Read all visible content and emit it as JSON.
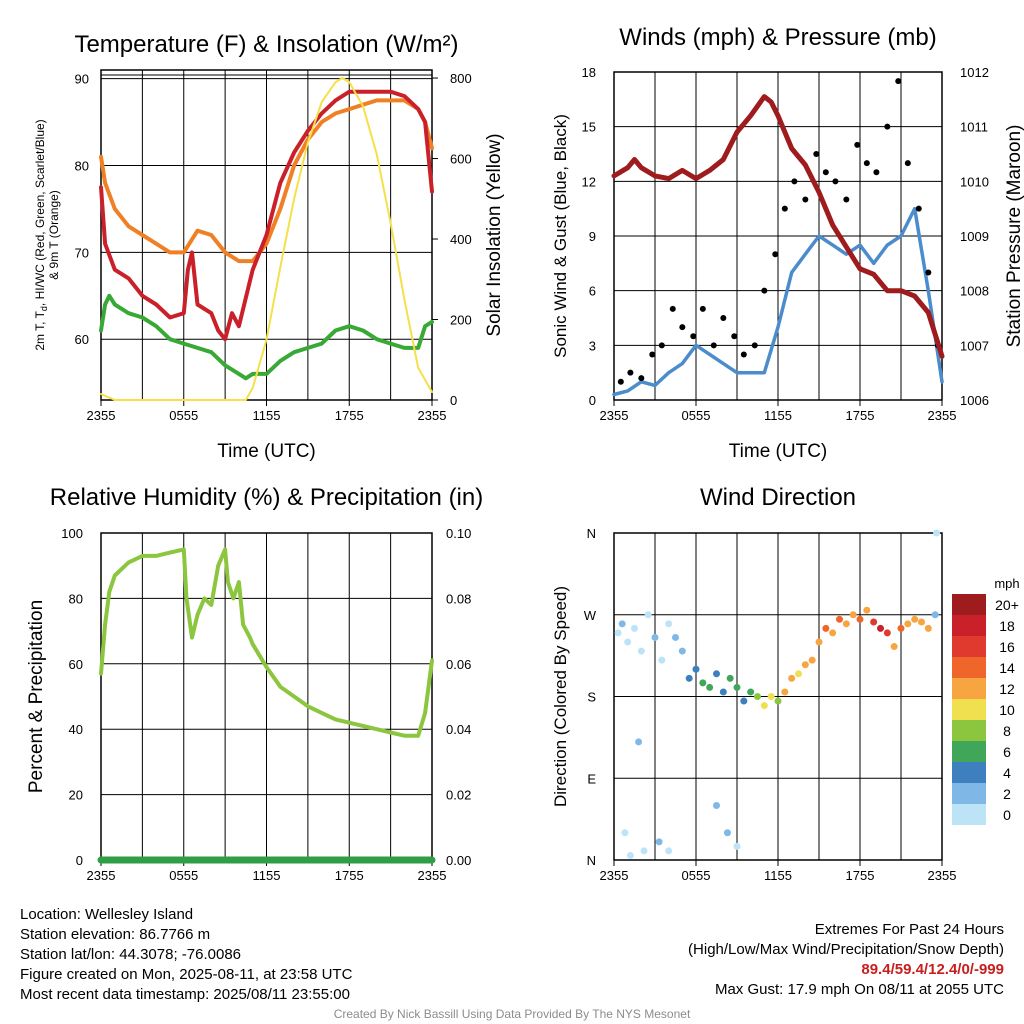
{
  "chart_data": [
    {
      "type": "line",
      "title": "Temperature (F) & Insolation (W/m²)",
      "xlabel": "Time (UTC)",
      "ylabel_left": [
        "2m T, T",
        "d",
        ", HI/WC (Red, Green, Scarlet/Blue)",
        "& 9m T (Orange)"
      ],
      "ylabel_right": "Solar Insolation (Yellow)",
      "x_ticks": [
        "2355",
        "0555",
        "1155",
        "1755",
        "2355"
      ],
      "y_ticks_left": [
        "60",
        "70",
        "80",
        "90"
      ],
      "y_ticks_right": [
        "0",
        "200",
        "400",
        "600",
        "800"
      ],
      "ylim_left": [
        53,
        91
      ],
      "ylim_right": [
        0,
        820
      ],
      "x_hours": [
        0,
        24
      ],
      "series": [
        {
          "color": "#39a935",
          "axis": "left",
          "x": [
            0,
            0.3,
            0.6,
            1,
            2,
            3,
            4,
            5,
            6,
            7,
            8,
            9,
            10,
            10.5,
            11,
            12,
            13,
            14,
            15,
            16,
            17,
            18,
            19,
            20,
            21,
            22,
            23,
            23.5,
            24
          ],
          "y": [
            61,
            64,
            65,
            64,
            63,
            62.5,
            61.5,
            60,
            59.5,
            59,
            58.5,
            57,
            56,
            55.5,
            56,
            56,
            57.5,
            58.5,
            59,
            59.5,
            61,
            61.5,
            61,
            60,
            59.5,
            59,
            59,
            61.5,
            62
          ]
        },
        {
          "color": "#f08025",
          "axis": "left",
          "x": [
            0,
            0.3,
            1,
            2,
            3,
            4,
            5,
            6,
            7,
            8,
            9,
            10,
            11,
            12,
            13,
            14,
            15,
            16,
            17,
            18,
            19,
            20,
            21,
            22,
            23,
            23.5,
            24
          ],
          "y": [
            81,
            78,
            75,
            73,
            72,
            71,
            70,
            70,
            72.5,
            72,
            70,
            69,
            69,
            71,
            75,
            80,
            83,
            85,
            86,
            86.5,
            87,
            87.5,
            87.5,
            87.5,
            86.5,
            85,
            82
          ]
        },
        {
          "color": "#c9202a",
          "axis": "left",
          "x": [
            0,
            0.3,
            1,
            2,
            3,
            4,
            5,
            6,
            6.3,
            6.6,
            7,
            8,
            8.5,
            9,
            9.5,
            10,
            11,
            12,
            13,
            14,
            15,
            16,
            17,
            18,
            19,
            20,
            21,
            22,
            23,
            23.5,
            24
          ],
          "y": [
            77.5,
            71,
            68,
            67,
            65,
            64,
            62.5,
            63,
            68,
            70,
            64,
            63,
            61,
            60,
            63,
            61.5,
            68,
            72,
            78,
            81.5,
            84,
            86,
            87.5,
            88.5,
            88.5,
            88.5,
            88.5,
            88,
            86.5,
            85,
            77
          ]
        },
        {
          "color": "#f5e04a",
          "axis": "right",
          "x": [
            0,
            1,
            2,
            3,
            4,
            5,
            6,
            7,
            8,
            9,
            10,
            10.5,
            11,
            12,
            13,
            14,
            15,
            16,
            17,
            17.5,
            18,
            19,
            20,
            21,
            22,
            23,
            24
          ],
          "y": [
            15,
            0,
            0,
            0,
            0,
            0,
            0,
            0,
            0,
            0,
            0,
            0,
            30,
            150,
            330,
            500,
            640,
            740,
            790,
            800,
            790,
            730,
            610,
            440,
            250,
            80,
            20
          ]
        }
      ]
    },
    {
      "type": "line",
      "title": "Winds (mph) & Pressure (mb)",
      "xlabel": "Time (UTC)",
      "ylabel_left": "Sonic Wind & Gust (Blue, Black)",
      "ylabel_right": "Station Pressure (Maroon)",
      "x_ticks": [
        "2355",
        "0555",
        "1155",
        "1755",
        "2355"
      ],
      "y_ticks_left": [
        "0",
        "3",
        "6",
        "9",
        "12",
        "15",
        "18"
      ],
      "y_ticks_right": [
        "1006",
        "1007",
        "1008",
        "1009",
        "1010",
        "1011",
        "1012"
      ],
      "ylim_left": [
        0,
        18
      ],
      "ylim_right": [
        1006,
        1012
      ],
      "x_hours": [
        0,
        24
      ],
      "series": [
        {
          "color": "#9e1b1e",
          "axis": "right",
          "x": [
            0,
            1,
            1.5,
            2,
            3,
            4,
            5,
            6,
            7,
            8,
            9,
            10,
            11,
            11.5,
            12,
            13,
            14,
            15,
            16,
            17,
            18,
            19,
            20,
            21,
            22,
            23,
            23.5,
            24
          ],
          "y": [
            1010.1,
            1010.25,
            1010.4,
            1010.25,
            1010.1,
            1010.05,
            1010.2,
            1010.05,
            1010.2,
            1010.4,
            1010.9,
            1011.2,
            1011.55,
            1011.45,
            1011.2,
            1010.6,
            1010.3,
            1009.8,
            1009.2,
            1008.8,
            1008.4,
            1008.3,
            1008.0,
            1008.0,
            1007.9,
            1007.6,
            1007.2,
            1006.8
          ]
        },
        {
          "color": "#4a8ccc",
          "axis": "left",
          "x": [
            0,
            1,
            2,
            3,
            4,
            5,
            6,
            7,
            8,
            9,
            10,
            11,
            12,
            13,
            14,
            15,
            16,
            17,
            18,
            19,
            20,
            21,
            22,
            23,
            24
          ],
          "y": [
            0.3,
            0.5,
            1.0,
            0.8,
            1.5,
            2.0,
            3.0,
            2.5,
            2.0,
            1.5,
            1.5,
            1.5,
            4.0,
            7.0,
            8.0,
            9.0,
            8.5,
            8.0,
            8.5,
            7.5,
            8.5,
            9.0,
            10.5,
            6.0,
            1.0
          ]
        }
      ],
      "gust_points": {
        "color": "#000000",
        "x": [
          0.5,
          1.2,
          2.0,
          2.8,
          3.5,
          4.3,
          5.0,
          5.8,
          6.5,
          7.3,
          8.0,
          8.8,
          9.5,
          10.3,
          11.0,
          11.8,
          12.5,
          13.2,
          14.0,
          14.8,
          15.5,
          16.2,
          17.0,
          17.8,
          18.5,
          19.2,
          20.0,
          20.8,
          21.5,
          22.3,
          23.0,
          23.7
        ],
        "y": [
          1.0,
          1.5,
          1.2,
          2.5,
          3.0,
          5.0,
          4.0,
          3.5,
          5.0,
          3.0,
          4.5,
          3.5,
          2.5,
          3.0,
          6.0,
          8.0,
          10.5,
          12.0,
          11.0,
          13.5,
          12.5,
          12.0,
          11.0,
          14.0,
          13.0,
          12.5,
          15.0,
          17.5,
          13.0,
          10.5,
          7.0,
          3.0
        ]
      }
    },
    {
      "type": "line",
      "title": "Relative Humidity (%) & Precipitation (in)",
      "ylabel_left": "Percent & Precipitation",
      "x_ticks": [
        "2355",
        "0555",
        "1155",
        "1755",
        "2355"
      ],
      "y_ticks_left": [
        "0",
        "20",
        "40",
        "60",
        "80",
        "100"
      ],
      "y_ticks_right": [
        "0.00",
        "0.02",
        "0.04",
        "0.06",
        "0.08",
        "0.10"
      ],
      "ylim_left": [
        0,
        100
      ],
      "ylim_right": [
        0,
        0.1
      ],
      "x_hours": [
        0,
        24
      ],
      "series": [
        {
          "color": "#8cc63f",
          "axis": "left",
          "x": [
            0,
            0.3,
            0.6,
            1,
            2,
            3,
            4,
            5,
            6,
            6.2,
            6.6,
            7,
            7.5,
            8,
            8.5,
            9,
            9.2,
            9.6,
            10,
            10.3,
            10.8,
            11,
            12,
            13,
            14,
            15,
            16,
            17,
            18,
            19,
            20,
            21,
            22,
            23,
            23.5,
            24
          ],
          "y": [
            57,
            72,
            82,
            87,
            91,
            93,
            93,
            94,
            95,
            80,
            68,
            75,
            80,
            78,
            90,
            95,
            85,
            80,
            85,
            72,
            68,
            66,
            59,
            53,
            50,
            47,
            45,
            43,
            42,
            41,
            40,
            39,
            38,
            38,
            45,
            61
          ]
        },
        {
          "color": "#2f9e44",
          "axis": "right",
          "x": [
            0,
            24
          ],
          "y": [
            0,
            0
          ]
        }
      ]
    },
    {
      "type": "scatter",
      "title": "Wind Direction",
      "ylabel_left": "Direction (Colored By Speed)",
      "x_ticks": [
        "2355",
        "0555",
        "1155",
        "1755",
        "2355"
      ],
      "y_ticks_left": [
        "N",
        "E",
        "S",
        "W",
        "N"
      ],
      "ylim": [
        0,
        360
      ],
      "x_hours": [
        0,
        24
      ],
      "colorbar": {
        "units": "mph",
        "labels": [
          "20+",
          "18",
          "16",
          "14",
          "12",
          "10",
          "8",
          "6",
          "4",
          "2",
          "0"
        ],
        "colors": [
          "#9e1b1e",
          "#c9202a",
          "#e03a2e",
          "#f0662a",
          "#f7a540",
          "#f0e050",
          "#8cc63f",
          "#3fa65a",
          "#3d7fbf",
          "#7fb8e6",
          "#bde3f7"
        ]
      },
      "points": [
        [
          0.3,
          250,
          0
        ],
        [
          0.6,
          260,
          1
        ],
        [
          1.0,
          240,
          0
        ],
        [
          1.5,
          255,
          0
        ],
        [
          2.0,
          230,
          0
        ],
        [
          2.5,
          270,
          0
        ],
        [
          3.0,
          245,
          1
        ],
        [
          3.5,
          220,
          0
        ],
        [
          4.0,
          260,
          0
        ],
        [
          4.5,
          245,
          1
        ],
        [
          5.0,
          230,
          1
        ],
        [
          5.5,
          200,
          2
        ],
        [
          6.0,
          210,
          2
        ],
        [
          6.5,
          195,
          3
        ],
        [
          7.0,
          190,
          3
        ],
        [
          7.5,
          205,
          2
        ],
        [
          8.0,
          185,
          2
        ],
        [
          8.5,
          200,
          3
        ],
        [
          9.0,
          190,
          3
        ],
        [
          9.5,
          175,
          2
        ],
        [
          10.0,
          185,
          3
        ],
        [
          10.5,
          180,
          4
        ],
        [
          11.0,
          170,
          5
        ],
        [
          11.5,
          180,
          5
        ],
        [
          12.0,
          175,
          4
        ],
        [
          12.5,
          185,
          6
        ],
        [
          13.0,
          200,
          6
        ],
        [
          13.5,
          205,
          5
        ],
        [
          14.0,
          215,
          6
        ],
        [
          14.5,
          220,
          6
        ],
        [
          15.0,
          240,
          6
        ],
        [
          15.5,
          255,
          7
        ],
        [
          16.0,
          250,
          6
        ],
        [
          16.5,
          265,
          7
        ],
        [
          17.0,
          260,
          6
        ],
        [
          17.5,
          270,
          6
        ],
        [
          18.0,
          265,
          7
        ],
        [
          18.5,
          275,
          6
        ],
        [
          19.0,
          262,
          8
        ],
        [
          19.5,
          255,
          9
        ],
        [
          20.0,
          250,
          8
        ],
        [
          20.5,
          235,
          6
        ],
        [
          21.0,
          255,
          7
        ],
        [
          21.5,
          260,
          6
        ],
        [
          22.0,
          265,
          6
        ],
        [
          22.5,
          262,
          6
        ],
        [
          23.0,
          255,
          6
        ],
        [
          23.5,
          270,
          1
        ],
        [
          1.2,
          5,
          0
        ],
        [
          2.2,
          10,
          0
        ],
        [
          3.3,
          20,
          1
        ],
        [
          4.0,
          10,
          0
        ],
        [
          7.5,
          60,
          1
        ],
        [
          8.3,
          30,
          1
        ],
        [
          9.0,
          15,
          0
        ],
        [
          0.8,
          30,
          0
        ],
        [
          1.8,
          130,
          1
        ],
        [
          23.6,
          360,
          0
        ]
      ]
    }
  ],
  "footer_left": {
    "location": "Location: Wellesley Island",
    "elevation": "Station elevation: 86.7766 m",
    "latlon": "Station lat/lon: 44.3078; -76.0086",
    "created": "Figure created on Mon, 2025-08-11, at 23:58 UTC",
    "recent": "Most recent data timestamp: 2025/08/11 23:55:00"
  },
  "footer_right": {
    "line1": "Extremes For Past 24 Hours",
    "line2": "(High/Low/Max Wind/Precipitation/Snow Depth)",
    "values": "89.4/59.4/12.4/0/-999",
    "gust": "Max Gust: 17.9 mph On 08/11 at 2055 UTC"
  },
  "credit": "Created By Nick Bassill Using Data Provided By The NYS Mesonet"
}
